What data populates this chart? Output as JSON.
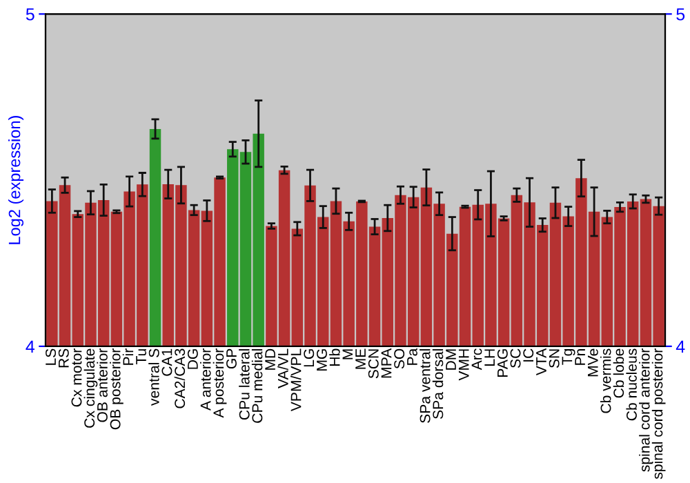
{
  "chart_data": {
    "type": "bar",
    "ylabel": "Log2 (expression)",
    "categories": [
      "LS",
      "RS",
      "Cx motor",
      "Cx cingulate",
      "OB anterior",
      "OB posterior",
      "Pir",
      "Tu",
      "ventral S",
      "CA1",
      "CA2/CA3",
      "DG",
      "A anterior",
      "A posterior",
      "GP",
      "CPu lateral",
      "CPu medial",
      "MD",
      "VA/VL",
      "VPM/VPL",
      "LG",
      "MG",
      "Hb",
      "M",
      "ME",
      "SCN",
      "MPA",
      "SO",
      "Pa",
      "SPa ventral",
      "SPa dorsal",
      "DM",
      "VMH",
      "Arc",
      "LH",
      "PAG",
      "SC",
      "IC",
      "VTA",
      "SN",
      "Tg",
      "Pn",
      "MVe",
      "Cb vermis",
      "Cb lobe",
      "Cb nucleus",
      "spinal cord anterior",
      "spinal cord posterior"
    ],
    "values": [
      4.437,
      4.485,
      4.398,
      4.432,
      4.44,
      4.405,
      4.466,
      4.487,
      4.654,
      4.488,
      4.485,
      4.41,
      4.408,
      4.508,
      4.593,
      4.585,
      4.64,
      4.362,
      4.53,
      4.354,
      4.484,
      4.389,
      4.437,
      4.376,
      4.436,
      4.36,
      4.386,
      4.455,
      4.449,
      4.478,
      4.429,
      4.339,
      4.42,
      4.426,
      4.429,
      4.385,
      4.455,
      4.433,
      4.365,
      4.432,
      4.391,
      4.506,
      4.405,
      4.389,
      4.419,
      4.436,
      4.443,
      4.422
    ],
    "errors": [
      0.035,
      0.023,
      0.009,
      0.035,
      0.047,
      0.004,
      0.045,
      0.035,
      0.029,
      0.043,
      0.055,
      0.015,
      0.031,
      0.003,
      0.022,
      0.035,
      0.1,
      0.008,
      0.011,
      0.02,
      0.047,
      0.033,
      0.038,
      0.026,
      0.002,
      0.023,
      0.039,
      0.026,
      0.031,
      0.054,
      0.034,
      0.05,
      0.003,
      0.044,
      0.098,
      0.006,
      0.02,
      0.073,
      0.02,
      0.046,
      0.029,
      0.055,
      0.073,
      0.019,
      0.014,
      0.021,
      0.011,
      0.026
    ],
    "colors": [
      "#b53232",
      "#b53232",
      "#b53232",
      "#b53232",
      "#b53232",
      "#b53232",
      "#b53232",
      "#b53232",
      "#2f9a2f",
      "#b53232",
      "#b53232",
      "#b53232",
      "#b53232",
      "#b53232",
      "#2f9a2f",
      "#2f9a2f",
      "#2f9a2f",
      "#b53232",
      "#b53232",
      "#b53232",
      "#b53232",
      "#b53232",
      "#b53232",
      "#b53232",
      "#b53232",
      "#b53232",
      "#b53232",
      "#b53232",
      "#b53232",
      "#b53232",
      "#b53232",
      "#b53232",
      "#b53232",
      "#b53232",
      "#b53232",
      "#b53232",
      "#b53232",
      "#b53232",
      "#b53232",
      "#b53232",
      "#b53232",
      "#b53232",
      "#b53232",
      "#b53232",
      "#b53232",
      "#b53232",
      "#b53232",
      "#b53232"
    ],
    "ylim": [
      4,
      5
    ],
    "yticks": [
      4,
      5
    ],
    "y2lim": [
      4,
      5
    ],
    "y2ticks": [
      4,
      5
    ],
    "grid": false,
    "legend": false
  }
}
